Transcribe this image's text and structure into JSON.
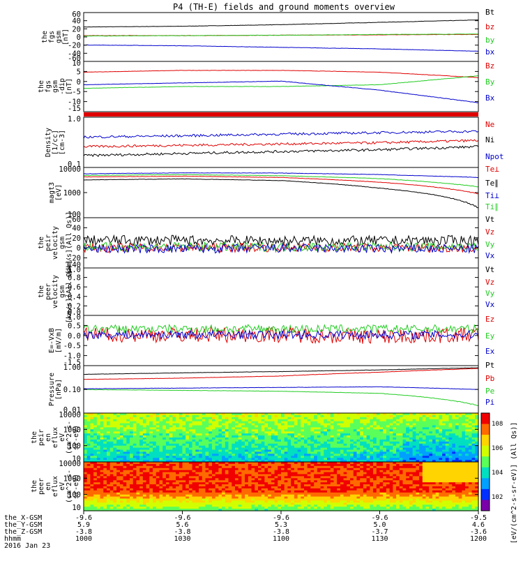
{
  "title": "P4 (TH-E) fields and ground moments overview",
  "colors": {
    "black": "#000000",
    "red": "#e00000",
    "green": "#22cc22",
    "blue": "#0000cc"
  },
  "colorbar": {
    "label": "[eV/(cm^2-s-sr-eV)] (All Qs)]",
    "ticks": [
      "10^8",
      "10^6",
      "10^4",
      "10^2"
    ],
    "colors": [
      "#f00000",
      "#ff6a00",
      "#ffd400",
      "#d2ff00",
      "#5aff5a",
      "#00e0c0",
      "#00a0ff",
      "#0030ff",
      "#7a00aa"
    ]
  },
  "x_axis": {
    "ticks": [
      "1000",
      "1030",
      "1100",
      "1130",
      "1200"
    ],
    "rows": [
      {
        "name": "the_X-GSM",
        "values": [
          "-9.6",
          "-9.6",
          "-9.6",
          "-9.6",
          "-9.5"
        ]
      },
      {
        "name": "the_Y-GSM",
        "values": [
          "5.9",
          "5.6",
          "5.3",
          "5.0",
          "4.6"
        ]
      },
      {
        "name": "the_Z-GSM",
        "values": [
          "-3.8",
          "-3.8",
          "-3.8",
          "-3.7",
          "-3.6"
        ]
      },
      {
        "name": "hhmm",
        "values": [
          "1000",
          "1030",
          "1100",
          "1130",
          "1200"
        ]
      }
    ],
    "date": "2016 Jan 23"
  },
  "chart_data": [
    {
      "type": "line",
      "ylabel": [
        "the",
        "fgs",
        "gsm",
        "[nT]"
      ],
      "yticks": [
        "60",
        "40",
        "20",
        "0",
        "-20",
        "-40",
        "-60"
      ],
      "ylim": [
        -60,
        65
      ],
      "x": [
        1000,
        1030,
        1100,
        1130,
        1200
      ],
      "series": [
        {
          "name": "Bt",
          "color": "black",
          "values": [
            28,
            30,
            34,
            40,
            46
          ]
        },
        {
          "name": "bz",
          "color": "red",
          "values": [
            6,
            6,
            7,
            8,
            9
          ]
        },
        {
          "name": "by",
          "color": "green",
          "values": [
            5,
            6,
            7,
            9,
            10
          ]
        },
        {
          "name": "bx",
          "color": "blue",
          "values": [
            -18,
            -20,
            -24,
            -28,
            -34
          ]
        }
      ]
    },
    {
      "type": "line",
      "ylabel": [
        "the",
        "fgs",
        "gsm",
        "-dip",
        "[nT]"
      ],
      "yticks": [
        "10",
        "5",
        "0",
        "-5",
        "-10",
        "-15"
      ],
      "ylim": [
        -18,
        10
      ],
      "x": [
        1000,
        1030,
        1100,
        1130,
        1200
      ],
      "series": [
        {
          "name": "Bz",
          "color": "red",
          "values": [
            4,
            5,
            5,
            4,
            1
          ]
        },
        {
          "name": "By",
          "color": "green",
          "values": [
            -5,
            -4,
            -4,
            -3,
            2
          ]
        },
        {
          "name": "Bx",
          "color": "blue",
          "values": [
            -3,
            -2,
            -1,
            -6,
            -13
          ]
        }
      ]
    },
    {
      "type": "bar",
      "ylabel": [],
      "yticks": [],
      "series": [
        {
          "name": "",
          "color": "red",
          "values": [
            1
          ]
        }
      ]
    },
    {
      "type": "line",
      "log": true,
      "ylabel": [
        "Density",
        "[1/cc]",
        "[cm-3]"
      ],
      "yticks": [
        "1.0",
        "0.1"
      ],
      "ylim": [
        0.1,
        1.2
      ],
      "x": [
        1000,
        1030,
        1100,
        1130,
        1200
      ],
      "series": [
        {
          "name": "Ne",
          "color": "red",
          "values": [
            0.28,
            0.3,
            0.32,
            0.34,
            0.38
          ]
        },
        {
          "name": "Ni",
          "color": "black",
          "values": [
            0.18,
            0.2,
            0.22,
            0.24,
            0.28
          ]
        },
        {
          "name": "Npot",
          "color": "blue",
          "values": [
            0.45,
            0.48,
            0.52,
            0.56,
            0.6
          ]
        }
      ]
    },
    {
      "type": "line",
      "log": true,
      "ylabel": [
        "magt3",
        "[eV]"
      ],
      "yticks": [
        "10000",
        "1000",
        "100"
      ],
      "ylim": [
        100,
        10000
      ],
      "x": [
        1000,
        1030,
        1100,
        1130,
        1200
      ],
      "series": [
        {
          "name": "Te⊥",
          "color": "red",
          "values": [
            4200,
            4500,
            4000,
            2600,
            900
          ]
        },
        {
          "name": "Te∥",
          "color": "black",
          "values": [
            3200,
            3500,
            3000,
            1500,
            250
          ]
        },
        {
          "name": "Ti⊥",
          "color": "blue",
          "values": [
            5600,
            6100,
            6000,
            5200,
            4000
          ]
        },
        {
          "name": "Ti∥",
          "color": "green",
          "values": [
            4800,
            5200,
            4700,
            3600,
            1700
          ]
        }
      ]
    },
    {
      "type": "line",
      "ylabel": [
        "the",
        "peir",
        "velocity",
        "gsm",
        "[km/s](All Qs)]"
      ],
      "yticks": [
        "60",
        "40",
        "20",
        "0",
        "-20",
        "-40"
      ],
      "ylim": [
        -40,
        60
      ],
      "x": [
        1000,
        1030,
        1100,
        1130,
        1200
      ],
      "series": [
        {
          "name": "Vt",
          "color": "black",
          "values": [
            15,
            15,
            14,
            14,
            15
          ]
        },
        {
          "name": "Vz",
          "color": "red",
          "values": [
            0,
            0,
            1,
            0,
            0
          ]
        },
        {
          "name": "Vy",
          "color": "green",
          "values": [
            2,
            2,
            2,
            2,
            2
          ]
        },
        {
          "name": "Vx",
          "color": "blue",
          "values": [
            -2,
            -2,
            -1,
            -2,
            -2
          ]
        }
      ]
    },
    {
      "type": "line",
      "ylabel": [
        "the",
        "peer",
        "velocity",
        "gsm",
        "[km/s](All Qs)]"
      ],
      "yticks": [
        "1.0",
        "0.8",
        "0.6",
        "0.4",
        "0.2",
        "0.0"
      ],
      "ylim": [
        0,
        1
      ],
      "x": [],
      "series": [
        {
          "name": "Vt",
          "color": "black",
          "values": []
        },
        {
          "name": "Vz",
          "color": "red",
          "values": []
        },
        {
          "name": "Vy",
          "color": "green",
          "values": []
        },
        {
          "name": "Vx",
          "color": "blue",
          "values": []
        }
      ]
    },
    {
      "type": "line",
      "ylabel": [
        "E=-VxB",
        "[mV/m]"
      ],
      "yticks": [
        "1.0",
        "0.5",
        "0.0",
        "-0.5",
        "-1.0",
        "-1.5"
      ],
      "ylim": [
        -1.6,
        1.0
      ],
      "x": [
        1000,
        1030,
        1100,
        1130,
        1200
      ],
      "series": [
        {
          "name": "Ez",
          "color": "red",
          "values": [
            0,
            0,
            0,
            -0.1,
            0
          ]
        },
        {
          "name": "Ey",
          "color": "green",
          "values": [
            0.3,
            0.3,
            0.3,
            0.3,
            0.3
          ]
        },
        {
          "name": "Ex",
          "color": "blue",
          "values": [
            0,
            0,
            0,
            0,
            0
          ]
        }
      ]
    },
    {
      "type": "line",
      "log": true,
      "ylabel": [
        "Pressure",
        "[nPa]"
      ],
      "yticks": [
        "1.00",
        "0.10",
        "0.01"
      ],
      "ylim": [
        0.01,
        1.5
      ],
      "x": [
        1000,
        1030,
        1100,
        1130,
        1200
      ],
      "series": [
        {
          "name": "Pt",
          "color": "black",
          "values": [
            0.6,
            0.7,
            0.8,
            0.95,
            1.2
          ]
        },
        {
          "name": "Pb",
          "color": "red",
          "values": [
            0.35,
            0.4,
            0.5,
            0.75,
            1.1
          ]
        },
        {
          "name": "Pe",
          "color": "green",
          "values": [
            0.12,
            0.11,
            0.1,
            0.08,
            0.022
          ]
        },
        {
          "name": "Pi",
          "color": "blue",
          "values": [
            0.13,
            0.14,
            0.15,
            0.16,
            0.12
          ]
        }
      ]
    },
    {
      "type": "heatmap",
      "ylabel": [
        "the",
        "peir",
        "en",
        "eflux",
        "eV",
        "(cm^2-s-",
        "sr-eV)"
      ],
      "yticks": [
        "10000",
        "1000",
        "100",
        "10"
      ],
      "series": []
    },
    {
      "type": "heatmap",
      "ylabel": [
        "the",
        "peer",
        "en",
        "eflux",
        "eV",
        "(cm^2-s-",
        "sr-eV)"
      ],
      "yticks": [
        "10000",
        "1000",
        "100",
        "10"
      ],
      "series": []
    }
  ]
}
